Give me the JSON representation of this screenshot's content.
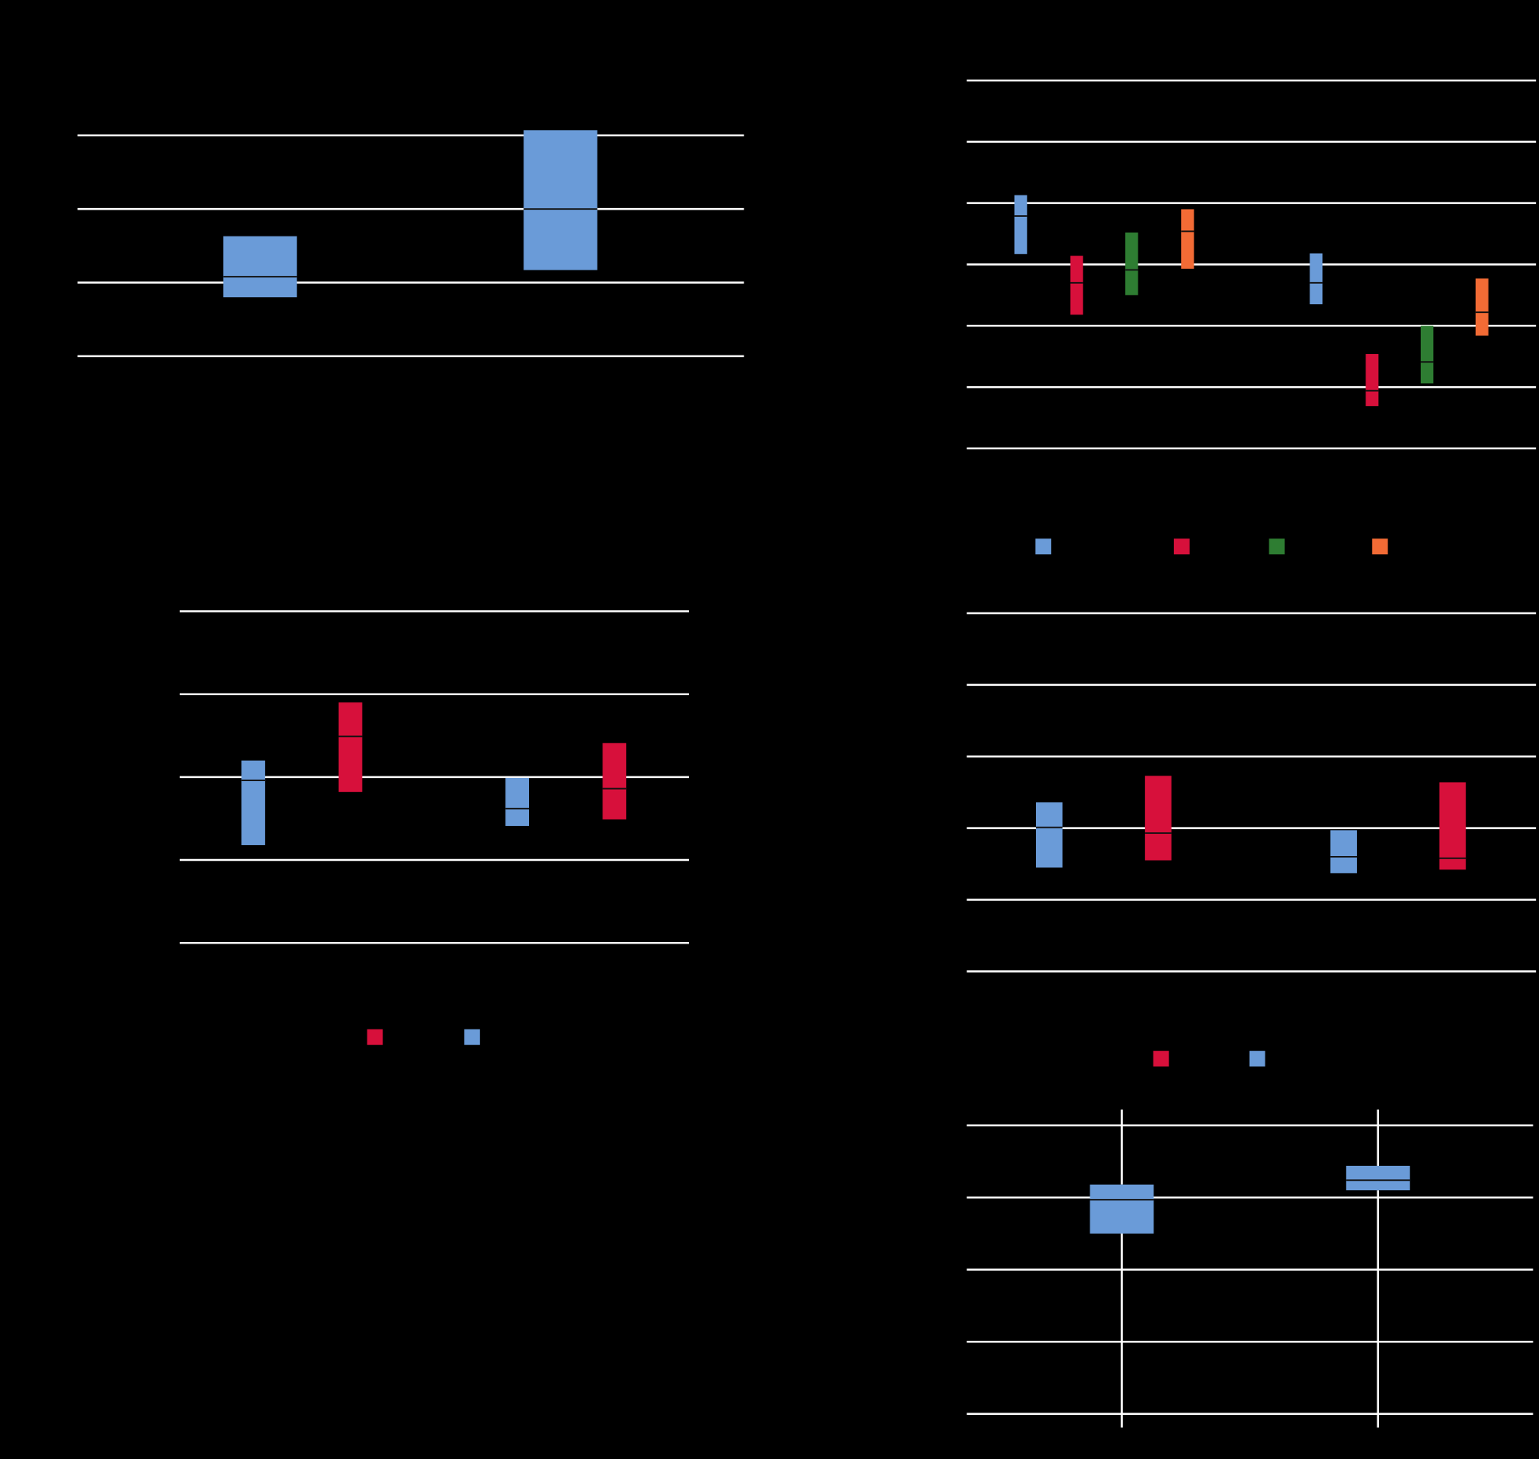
{
  "chart_data": [
    {
      "type": "box",
      "ylim": [
        0,
        3
      ],
      "yticks": [
        0,
        1,
        2,
        3
      ],
      "grid": true,
      "series": [
        {
          "color": "#6a9bd8",
          "q1": [
            0.8,
            1.17
          ],
          "median": [
            1.08,
            2.0
          ],
          "q3": [
            1.63,
            3.07
          ]
        }
      ]
    },
    {
      "type": "box",
      "ylim": [
        0,
        6
      ],
      "yticks": [
        0,
        1,
        2,
        3,
        4,
        5,
        6
      ],
      "grid": true,
      "series": [
        {
          "color": "#6a9bd8",
          "q1": [
            3.17,
            2.35
          ],
          "median": [
            3.79,
            2.7
          ],
          "q3": [
            4.13,
            3.18
          ]
        },
        {
          "color": "#d7103b",
          "q1": [
            2.18,
            0.69
          ],
          "median": [
            2.7,
            0.94
          ],
          "q3": [
            3.14,
            1.54
          ]
        },
        {
          "color": "#2e7d32",
          "q1": [
            2.5,
            1.06
          ],
          "median": [
            2.91,
            1.41
          ],
          "q3": [
            3.52,
            2.0
          ]
        },
        {
          "color": "#f26b35",
          "q1": [
            2.93,
            1.84
          ],
          "median": [
            3.54,
            2.22
          ],
          "q3": [
            3.9,
            2.77
          ]
        }
      ]
    },
    {
      "type": "box",
      "ylim": [
        0,
        4
      ],
      "yticks": [
        0,
        1,
        2,
        3,
        4
      ],
      "grid": true,
      "series": [
        {
          "color": "#6a9bd8",
          "q1": [
            1.18,
            1.41
          ],
          "median": [
            1.96,
            1.62
          ],
          "q3": [
            2.2,
            1.99
          ]
        },
        {
          "color": "#d7103b",
          "q1": [
            1.82,
            1.49
          ],
          "median": [
            2.49,
            1.86
          ],
          "q3": [
            2.9,
            2.41
          ]
        }
      ]
    },
    {
      "type": "box",
      "ylim": [
        0,
        5
      ],
      "yticks": [
        0,
        1,
        2,
        3,
        4,
        5
      ],
      "grid": true,
      "series": [
        {
          "color": "#6a9bd8",
          "q1": [
            1.45,
            1.37
          ],
          "median": [
            2.01,
            1.6
          ],
          "q3": [
            2.36,
            1.97
          ]
        },
        {
          "color": "#d7103b",
          "q1": [
            1.55,
            1.42
          ],
          "median": [
            1.93,
            1.58
          ],
          "q3": [
            2.73,
            2.64
          ]
        }
      ]
    },
    {
      "type": "box",
      "ylim": [
        0,
        4
      ],
      "yticks": [
        0,
        1,
        2,
        3,
        4
      ],
      "grid": true,
      "series": [
        {
          "color": "#6a9bd8",
          "whisker_low": [
            -0.19,
            -0.19
          ],
          "q1": [
            2.5,
            3.1
          ],
          "median": [
            2.97,
            3.24
          ],
          "q3": [
            3.18,
            3.44
          ],
          "whisker_high": [
            4.22,
            4.22
          ]
        }
      ]
    }
  ]
}
